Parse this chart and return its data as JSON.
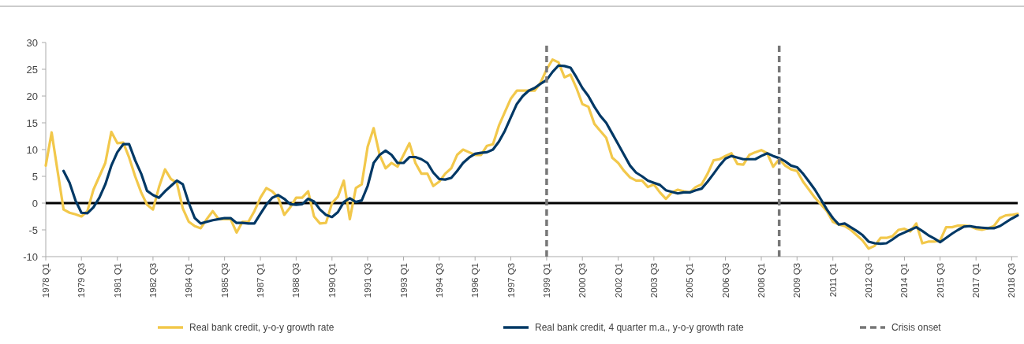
{
  "chart_data": {
    "type": "line",
    "x": [
      "1978-01",
      "1978-04",
      "1978-07",
      "1978-10",
      "1979-01",
      "1979-04",
      "1979-07",
      "1979-10",
      "1980-01",
      "1980-04",
      "1980-07",
      "1980-10",
      "1981-01",
      "1981-04",
      "1981-07",
      "1981-10",
      "1982-01",
      "1982-04",
      "1982-07",
      "1982-10",
      "1983-01",
      "1983-04",
      "1983-07",
      "1983-10",
      "1984-01",
      "1984-04",
      "1984-07",
      "1984-10",
      "1985-01",
      "1985-04",
      "1985-07",
      "1985-10",
      "1986-01",
      "1986-04",
      "1986-07",
      "1986-10",
      "1987-01",
      "1987-04",
      "1987-07",
      "1987-10",
      "1988-01",
      "1988-04",
      "1988-07",
      "1988-10",
      "1989-01",
      "1989-04",
      "1989-07",
      "1989-10",
      "1990-01",
      "1990-04",
      "1990-07",
      "1990-10",
      "1991-01",
      "1991-04",
      "1991-07",
      "1991-10",
      "1992-01",
      "1992-04",
      "1992-07",
      "1992-10",
      "1993-01",
      "1993-04",
      "1993-07",
      "1993-10",
      "1994-01",
      "1994-04",
      "1994-07",
      "1994-10",
      "1995-01",
      "1995-04",
      "1995-07",
      "1995-10",
      "1996-01",
      "1996-04",
      "1996-07",
      "1996-10",
      "1997-01",
      "1997-04",
      "1997-07",
      "1997-10",
      "1998-01",
      "1998-04",
      "1998-07",
      "1998-10",
      "1999-01",
      "1999-04",
      "1999-07",
      "1999-10",
      "2000-01",
      "2000-04",
      "2000-07",
      "2000-10",
      "2001-01",
      "2001-04",
      "2001-07",
      "2001-10",
      "2002-01",
      "2002-04",
      "2002-07",
      "2002-10",
      "2003-01",
      "2003-04",
      "2003-07",
      "2003-10",
      "2004-01",
      "2004-04",
      "2004-07",
      "2004-10",
      "2005-01",
      "2005-04",
      "2005-07",
      "2005-10",
      "2006-01",
      "2006-04",
      "2006-07",
      "2006-10",
      "2007-01",
      "2007-04",
      "2007-07",
      "2007-10",
      "2008-01",
      "2008-04",
      "2008-07",
      "2008-10",
      "2009-01",
      "2009-04",
      "2009-07",
      "2009-10",
      "2010-01",
      "2010-04",
      "2010-07",
      "2010-10",
      "2011-01",
      "2011-04",
      "2011-07",
      "2011-10",
      "2012-01",
      "2012-04",
      "2012-07",
      "2012-10",
      "2013-01",
      "2013-04",
      "2013-07",
      "2013-10",
      "2014-01",
      "2014-04",
      "2014-07",
      "2014-10",
      "2015-01",
      "2015-04",
      "2015-07",
      "2015-10",
      "2016-01",
      "2016-04",
      "2016-07",
      "2016-10",
      "2017-01",
      "2017-04",
      "2017-07",
      "2017-10",
      "2018-01",
      "2018-04",
      "2018-07",
      "2018-10"
    ],
    "xlim": [
      "1978-01",
      "2018-10"
    ],
    "xticks": [
      {
        "value": "1978-01",
        "label": "1978 Q1"
      },
      {
        "value": "1979-07",
        "label": "1979 Q3"
      },
      {
        "value": "1981-01",
        "label": "1981 Q1"
      },
      {
        "value": "1982-07",
        "label": "1982 Q3"
      },
      {
        "value": "1984-01",
        "label": "1984 Q1"
      },
      {
        "value": "1985-07",
        "label": "1985 Q3"
      },
      {
        "value": "1987-01",
        "label": "1987 Q1"
      },
      {
        "value": "1988-07",
        "label": "1988 Q3"
      },
      {
        "value": "1990-01",
        "label": "1990 Q1"
      },
      {
        "value": "1991-07",
        "label": "1991 Q3"
      },
      {
        "value": "1993-01",
        "label": "1993 Q1"
      },
      {
        "value": "1994-07",
        "label": "1994 Q3"
      },
      {
        "value": "1996-01",
        "label": "1996 Q1"
      },
      {
        "value": "1997-07",
        "label": "1997 Q3"
      },
      {
        "value": "1999-01",
        "label": "1999 Q1"
      },
      {
        "value": "2000-07",
        "label": "2000 Q3"
      },
      {
        "value": "2002-01",
        "label": "2002 Q1"
      },
      {
        "value": "2003-07",
        "label": "2003 Q3"
      },
      {
        "value": "2005-01",
        "label": "2005 Q1"
      },
      {
        "value": "2006-07",
        "label": "2006 Q3"
      },
      {
        "value": "2008-01",
        "label": "2008 Q1"
      },
      {
        "value": "2009-07",
        "label": "2009 Q3"
      },
      {
        "value": "2011-01",
        "label": "2011 Q1"
      },
      {
        "value": "2012-07",
        "label": "2012 Q3"
      },
      {
        "value": "2014-01",
        "label": "2014 Q1"
      },
      {
        "value": "2015-07",
        "label": "2015 Q3"
      },
      {
        "value": "2017-01",
        "label": "2017 Q1"
      },
      {
        "value": "2018-07",
        "label": "2018 Q3"
      }
    ],
    "ylim": [
      -10,
      30
    ],
    "yticks": [
      -10,
      -5,
      0,
      5,
      10,
      15,
      20,
      25,
      30
    ],
    "legend": "bottom",
    "series": [
      {
        "name": "Real bank credit, y-o-y growth rate",
        "color": "#f2c84b",
        "values": [
          7,
          13.2,
          6,
          -1.2,
          -1.8,
          -2.1,
          -2.5,
          -1.5,
          2.5,
          5,
          7.5,
          13.3,
          11.2,
          11.3,
          8.5,
          5,
          2,
          -0.3,
          -1.2,
          3,
          6.3,
          4.5,
          3.8,
          -1,
          -3.5,
          -4.3,
          -4.7,
          -3,
          -1.5,
          -3,
          -3,
          -3,
          -5.5,
          -3.5,
          -3.5,
          -1.5,
          1,
          2.8,
          2.2,
          1,
          -2.2,
          -0.8,
          1,
          1,
          2.2,
          -2.5,
          -3.8,
          -3.7,
          0,
          1.2,
          4.2,
          -3,
          2.8,
          3.5,
          10.5,
          14,
          9,
          6.5,
          7.5,
          6.8,
          9,
          11.2,
          7.5,
          5.5,
          5.5,
          3.2,
          4,
          5.5,
          6.5,
          9,
          10,
          9.5,
          9,
          9,
          10.7,
          11,
          14.5,
          17,
          19.5,
          21,
          21,
          21,
          21,
          22.5,
          25,
          26.8,
          26.3,
          23.5,
          24,
          21.5,
          18.5,
          18,
          14.8,
          13.5,
          12.2,
          8.5,
          7.5,
          6,
          4.8,
          4.2,
          4.2,
          3,
          3.5,
          2,
          0.8,
          2,
          2.5,
          2.2,
          2,
          3,
          3.5,
          5.5,
          8,
          8.2,
          8.8,
          9.3,
          7.3,
          7.2,
          9,
          9.5,
          9.9,
          9.3,
          6.8,
          8.2,
          7,
          6.3,
          6,
          4,
          2.5,
          1,
          -0.2,
          -1.5,
          -3.5,
          -4,
          -4.3,
          -5,
          -6,
          -7,
          -8.5,
          -8,
          -6.5,
          -6.5,
          -6.2,
          -5,
          -4.8,
          -5.3,
          -3.8,
          -7.5,
          -7.2,
          -7.2,
          -7,
          -4.5,
          -4.5,
          -4.2,
          -4.2,
          -4.3,
          -4.8,
          -5,
          -4.7,
          -4.3,
          -2.8,
          -2.3,
          -2.2,
          -2
        ]
      },
      {
        "name": "Real bank credit, 4 quarter m.a., y-o-y growth rate",
        "color": "#003865",
        "values": [
          null,
          null,
          null,
          6,
          3.8,
          0.5,
          -1.8,
          -1.9,
          -0.8,
          1,
          3.5,
          7,
          9.5,
          11,
          11,
          8,
          5.5,
          2.3,
          1.5,
          1,
          2.2,
          3.2,
          4.2,
          3.5,
          0,
          -2.8,
          -3.8,
          -3.5,
          -3.2,
          -3,
          -2.8,
          -2.8,
          -3.7,
          -3.7,
          -3.8,
          -3.8,
          -2,
          -0.3,
          1,
          1.5,
          0.8,
          -0.2,
          -0.3,
          -0.2,
          0.8,
          0.3,
          -1.2,
          -2.2,
          -2.6,
          -1.7,
          0.2,
          0.9,
          0.2,
          0.5,
          3.2,
          7.5,
          9,
          9.8,
          9,
          7.5,
          7.5,
          8.6,
          8.6,
          8.2,
          7.5,
          5.7,
          4.5,
          4.4,
          4.7,
          6,
          7.5,
          8.5,
          9.2,
          9.4,
          9.5,
          10,
          11.5,
          13.5,
          16,
          18.5,
          20,
          21,
          21.5,
          22.3,
          23,
          24.5,
          25.7,
          25.6,
          25.3,
          23.5,
          21.5,
          20,
          18,
          16.3,
          15,
          13,
          11,
          9,
          7,
          5.7,
          5,
          4.2,
          3.8,
          3.4,
          2.4,
          2.1,
          1.8,
          2,
          2,
          2.4,
          2.7,
          4,
          5.5,
          7,
          8.3,
          8.8,
          8.5,
          8.2,
          8.2,
          8.2,
          8.8,
          9.3,
          8.8,
          8.4,
          7.8,
          7,
          6.7,
          5.5,
          4,
          2.5,
          0.7,
          -1.2,
          -2.8,
          -4,
          -3.8,
          -4.5,
          -5.2,
          -6,
          -7.2,
          -7.5,
          -7.6,
          -7.5,
          -6.8,
          -6,
          -5.5,
          -5,
          -4.5,
          -5.2,
          -6,
          -6.6,
          -7.3,
          -6.5,
          -5.7,
          -5,
          -4.4,
          -4.3,
          -4.5,
          -4.6,
          -4.7,
          -4.7,
          -4.3,
          -3.6,
          -2.9,
          -2.3
        ]
      }
    ],
    "ref_lines": [
      {
        "axis": "y",
        "value": 0,
        "color": "#000000",
        "line_style": "solid"
      },
      {
        "axis": "x",
        "value": "1999-01",
        "label": "Crisis onset",
        "color": "#777777",
        "line_style": "dashed"
      },
      {
        "axis": "x",
        "value": "2008-10",
        "color": "#777777",
        "line_style": "dashed"
      }
    ]
  }
}
